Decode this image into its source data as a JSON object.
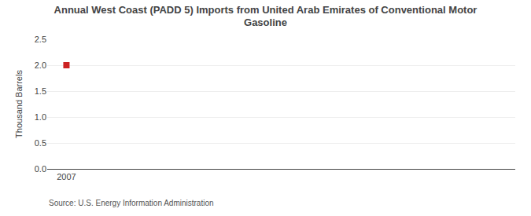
{
  "chart_data": {
    "type": "scatter",
    "title": "Annual West Coast (PADD 5) Imports from United Arab Emirates of Conventional Motor\nGasoline",
    "ylabel": "Thousand Barrels",
    "source": "Source: U.S. Energy Information Administration",
    "x": [
      2007
    ],
    "values": [
      2.0
    ],
    "color": "#cc2222",
    "marker": "square",
    "xlim": [
      2006.7,
      2014.0
    ],
    "xticks": [
      2007
    ],
    "ylim": [
      0.0,
      2.5
    ],
    "yticks": [
      {
        "value": 0.0,
        "label": "0.0"
      },
      0.5,
      {
        "value": 1.0,
        "label": "1.0"
      },
      1.5,
      {
        "value": 2.0,
        "label": "2.0"
      },
      2.5
    ],
    "grid": true
  }
}
